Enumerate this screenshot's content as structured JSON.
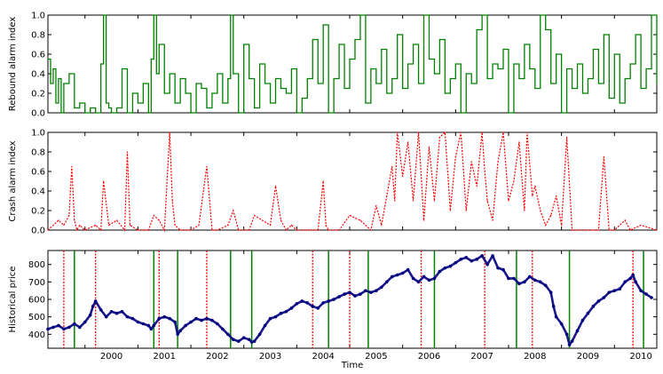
{
  "chart_data": [
    {
      "type": "line",
      "ylabel": "Rebound alarm index",
      "ylim": [
        0.0,
        1.0
      ],
      "yticks": [
        "0.0",
        "0.2",
        "0.4",
        "0.6",
        "0.8",
        "1.0"
      ],
      "xlim": [
        1999.3,
        2010.8
      ],
      "color": "#008000",
      "style": "solid step",
      "x": [
        1999.3,
        1999.35,
        1999.4,
        1999.45,
        1999.5,
        1999.55,
        1999.6,
        1999.7,
        1999.8,
        1999.9,
        2000.0,
        2000.1,
        2000.2,
        2000.3,
        2000.35,
        2000.4,
        2000.45,
        2000.5,
        2000.6,
        2000.7,
        2000.8,
        2000.9,
        2001.0,
        2001.1,
        2001.2,
        2001.25,
        2001.3,
        2001.35,
        2001.4,
        2001.5,
        2001.6,
        2001.7,
        2001.8,
        2001.9,
        2002.0,
        2002.1,
        2002.2,
        2002.3,
        2002.4,
        2002.5,
        2002.6,
        2002.7,
        2002.75,
        2002.8,
        2002.9,
        2003.0,
        2003.1,
        2003.2,
        2003.3,
        2003.4,
        2003.5,
        2003.6,
        2003.7,
        2003.8,
        2003.9,
        2004.0,
        2004.1,
        2004.2,
        2004.3,
        2004.4,
        2004.5,
        2004.6,
        2004.7,
        2004.8,
        2004.9,
        2005.0,
        2005.1,
        2005.2,
        2005.3,
        2005.4,
        2005.5,
        2005.6,
        2005.7,
        2005.8,
        2005.9,
        2006.0,
        2006.1,
        2006.2,
        2006.3,
        2006.4,
        2006.5,
        2006.6,
        2006.7,
        2006.8,
        2006.9,
        2007.0,
        2007.1,
        2007.2,
        2007.3,
        2007.4,
        2007.5,
        2007.6,
        2007.7,
        2007.8,
        2007.9,
        2008.0,
        2008.1,
        2008.2,
        2008.3,
        2008.4,
        2008.5,
        2008.6,
        2008.7,
        2008.8,
        2008.9,
        2009.0,
        2009.1,
        2009.2,
        2009.3,
        2009.4,
        2009.5,
        2009.6,
        2009.7,
        2009.8,
        2009.9,
        2010.0,
        2010.1,
        2010.2,
        2010.3,
        2010.4,
        2010.5,
        2010.6,
        2010.7,
        2010.8
      ],
      "y": [
        0.55,
        0.3,
        0.45,
        0.1,
        0.35,
        0.0,
        0.3,
        0.4,
        0.05,
        0.1,
        0.0,
        0.05,
        0.0,
        0.5,
        1.0,
        0.1,
        0.05,
        0.0,
        0.05,
        0.45,
        0.0,
        0.2,
        0.1,
        0.3,
        0.0,
        0.55,
        1.0,
        0.4,
        0.7,
        0.2,
        0.4,
        0.1,
        0.35,
        0.2,
        0.0,
        0.3,
        0.25,
        0.05,
        0.2,
        0.4,
        0.1,
        0.35,
        1.0,
        0.4,
        0.0,
        0.7,
        0.35,
        0.05,
        0.5,
        0.3,
        0.1,
        0.35,
        0.25,
        0.2,
        0.45,
        0.0,
        0.15,
        0.35,
        0.75,
        0.3,
        0.9,
        0.0,
        0.35,
        0.7,
        0.25,
        0.55,
        0.75,
        1.0,
        0.1,
        0.45,
        0.3,
        0.65,
        0.2,
        0.35,
        0.8,
        0.25,
        0.5,
        0.7,
        0.3,
        1.0,
        0.55,
        0.4,
        0.75,
        0.2,
        0.35,
        0.5,
        0.0,
        0.4,
        0.3,
        0.85,
        1.0,
        0.35,
        0.5,
        0.45,
        0.65,
        0.0,
        0.5,
        0.35,
        0.7,
        0.45,
        0.25,
        1.0,
        0.85,
        0.3,
        0.6,
        0.0,
        0.45,
        0.25,
        0.5,
        0.2,
        0.35,
        0.65,
        0.3,
        0.8,
        0.15,
        0.6,
        0.1,
        0.35,
        0.5,
        0.8,
        0.25,
        0.45,
        1.0,
        0.3
      ]
    },
    {
      "type": "line",
      "ylabel": "Crash alarm index",
      "ylim": [
        0.0,
        1.0
      ],
      "yticks": [
        "0.0",
        "0.2",
        "0.4",
        "0.6",
        "0.8",
        "1.0"
      ],
      "xlim": [
        1999.3,
        2010.8
      ],
      "color": "#ff0000",
      "style": "dotted",
      "x": [
        1999.3,
        1999.5,
        1999.6,
        1999.7,
        1999.75,
        1999.8,
        1999.85,
        1999.9,
        2000.0,
        2000.2,
        2000.3,
        2000.35,
        2000.45,
        2000.6,
        2000.75,
        2000.8,
        2000.85,
        2001.0,
        2001.2,
        2001.3,
        2001.4,
        2001.5,
        2001.6,
        2001.65,
        2001.7,
        2001.8,
        2002.0,
        2002.15,
        2002.3,
        2002.4,
        2002.5,
        2002.7,
        2002.8,
        2002.9,
        2003.1,
        2003.2,
        2003.5,
        2003.6,
        2003.7,
        2003.8,
        2003.9,
        2004.0,
        2004.2,
        2004.4,
        2004.5,
        2004.55,
        2004.6,
        2004.8,
        2005.0,
        2005.2,
        2005.4,
        2005.5,
        2005.6,
        2005.7,
        2005.8,
        2005.85,
        2005.9,
        2006.0,
        2006.1,
        2006.2,
        2006.3,
        2006.4,
        2006.5,
        2006.6,
        2006.7,
        2006.8,
        2006.9,
        2007.0,
        2007.1,
        2007.2,
        2007.3,
        2007.4,
        2007.5,
        2007.55,
        2007.6,
        2007.7,
        2007.8,
        2007.9,
        2008.0,
        2008.1,
        2008.2,
        2008.3,
        2008.35,
        2008.45,
        2008.5,
        2008.6,
        2008.7,
        2008.8,
        2008.9,
        2009.0,
        2009.1,
        2009.2,
        2009.4,
        2009.6,
        2009.7,
        2009.8,
        2009.9,
        2010.0,
        2010.2,
        2010.3,
        2010.5,
        2010.8
      ],
      "y": [
        0.0,
        0.1,
        0.05,
        0.15,
        0.65,
        0.1,
        0.0,
        0.05,
        0.0,
        0.05,
        0.0,
        0.5,
        0.05,
        0.1,
        0.0,
        0.8,
        0.05,
        0.0,
        0.0,
        0.15,
        0.1,
        0.0,
        1.0,
        0.3,
        0.05,
        0.0,
        0.0,
        0.05,
        0.65,
        0.0,
        0.0,
        0.05,
        0.2,
        0.0,
        0.0,
        0.15,
        0.05,
        0.45,
        0.1,
        0.0,
        0.05,
        0.0,
        0.0,
        0.0,
        0.5,
        0.05,
        0.0,
        0.0,
        0.15,
        0.1,
        0.0,
        0.25,
        0.05,
        0.35,
        0.65,
        0.3,
        1.0,
        0.55,
        0.9,
        0.3,
        1.0,
        0.1,
        0.85,
        0.3,
        0.95,
        1.0,
        0.2,
        0.75,
        1.0,
        0.2,
        0.7,
        0.45,
        1.0,
        0.6,
        0.3,
        0.1,
        0.7,
        1.0,
        0.3,
        0.5,
        0.9,
        0.2,
        1.0,
        0.35,
        0.45,
        0.2,
        0.05,
        0.15,
        0.35,
        0.05,
        0.95,
        0.0,
        0.0,
        0.0,
        0.0,
        0.75,
        0.0,
        0.0,
        0.1,
        0.0,
        0.05,
        0.0
      ]
    },
    {
      "type": "scatter",
      "ylabel": "Historical price",
      "xlabel": "Time",
      "ylim": [
        320,
        880
      ],
      "yticks": [
        "400",
        "500",
        "600",
        "700",
        "800"
      ],
      "xlim": [
        1999.3,
        2010.8
      ],
      "xticks": [
        "2000",
        "2001",
        "2002",
        "2003",
        "2004",
        "2005",
        "2006",
        "2007",
        "2008",
        "2009",
        "2010"
      ],
      "color": "#000080",
      "x": [
        1999.3,
        1999.4,
        1999.5,
        1999.6,
        1999.7,
        1999.8,
        1999.9,
        2000.0,
        2000.1,
        2000.15,
        2000.2,
        2000.3,
        2000.4,
        2000.5,
        2000.6,
        2000.7,
        2000.8,
        2000.9,
        2001.0,
        2001.1,
        2001.2,
        2001.25,
        2001.3,
        2001.4,
        2001.5,
        2001.6,
        2001.7,
        2001.75,
        2001.8,
        2001.9,
        2002.0,
        2002.1,
        2002.2,
        2002.3,
        2002.4,
        2002.5,
        2002.6,
        2002.7,
        2002.8,
        2002.9,
        2003.0,
        2003.1,
        2003.15,
        2003.2,
        2003.3,
        2003.4,
        2003.5,
        2003.6,
        2003.7,
        2003.8,
        2003.9,
        2004.0,
        2004.1,
        2004.2,
        2004.3,
        2004.4,
        2004.5,
        2004.6,
        2004.7,
        2004.8,
        2004.9,
        2005.0,
        2005.1,
        2005.2,
        2005.3,
        2005.4,
        2005.5,
        2005.6,
        2005.7,
        2005.8,
        2005.9,
        2006.0,
        2006.1,
        2006.2,
        2006.3,
        2006.4,
        2006.5,
        2006.6,
        2006.7,
        2006.8,
        2006.9,
        2007.0,
        2007.1,
        2007.2,
        2007.3,
        2007.4,
        2007.5,
        2007.6,
        2007.7,
        2007.8,
        2007.9,
        2008.0,
        2008.1,
        2008.2,
        2008.3,
        2008.4,
        2008.5,
        2008.6,
        2008.7,
        2008.8,
        2008.85,
        2008.9,
        2009.0,
        2009.1,
        2009.15,
        2009.2,
        2009.3,
        2009.4,
        2009.5,
        2009.6,
        2009.7,
        2009.8,
        2009.9,
        2010.0,
        2010.1,
        2010.2,
        2010.3,
        2010.35,
        2010.4,
        2010.5,
        2010.6,
        2010.7
      ],
      "y": [
        430,
        440,
        450,
        430,
        440,
        460,
        440,
        470,
        510,
        560,
        590,
        540,
        500,
        530,
        520,
        530,
        500,
        490,
        470,
        460,
        450,
        430,
        450,
        490,
        500,
        490,
        470,
        400,
        420,
        450,
        470,
        490,
        480,
        490,
        480,
        460,
        430,
        400,
        370,
        360,
        380,
        370,
        355,
        360,
        400,
        450,
        490,
        500,
        520,
        530,
        550,
        575,
        590,
        580,
        560,
        550,
        580,
        590,
        600,
        615,
        630,
        640,
        620,
        630,
        650,
        640,
        650,
        670,
        700,
        730,
        740,
        750,
        770,
        720,
        700,
        730,
        710,
        720,
        760,
        780,
        790,
        810,
        830,
        840,
        820,
        830,
        850,
        800,
        850,
        780,
        770,
        720,
        720,
        690,
        700,
        730,
        710,
        700,
        680,
        640,
        560,
        500,
        460,
        400,
        340,
        360,
        420,
        480,
        520,
        560,
        590,
        610,
        640,
        650,
        660,
        700,
        720,
        740,
        700,
        650,
        630,
        610
      ]
    },
    {
      "type": "events",
      "xlim": [
        1999.3,
        2010.8
      ],
      "rebound_alarms": [
        1999.8,
        2001.3,
        2001.75,
        2002.75,
        2003.15,
        2004.6,
        2005.35,
        2006.6,
        2008.15,
        2009.15,
        2010.55
      ],
      "crash_alarms": [
        1999.6,
        2000.2,
        2001.4,
        2002.3,
        2004.3,
        2005.0,
        2006.35,
        2007.55,
        2008.45,
        2010.35
      ]
    }
  ]
}
